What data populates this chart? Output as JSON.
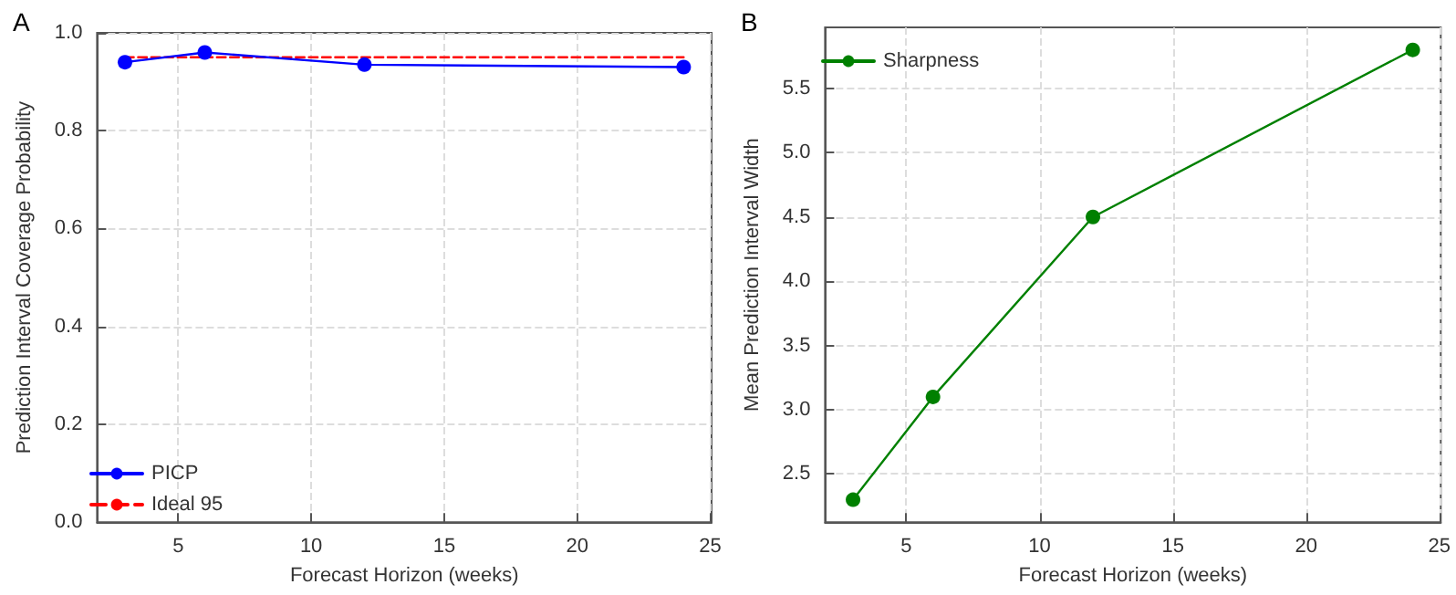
{
  "chart_data": [
    {
      "type": "line",
      "title": "A",
      "xlabel": "Forecast Horizon (weeks)",
      "ylabel": "Prediction Interval Coverage Probability",
      "x": [
        3,
        6,
        12,
        24
      ],
      "series": [
        {
          "name": "PICP",
          "color": "#0000ff",
          "values": [
            0.94,
            0.96,
            0.935,
            0.93
          ],
          "marker": "circle",
          "line_style": "solid"
        },
        {
          "name": "Ideal 95",
          "color": "#ff0000",
          "x": [
            3,
            24
          ],
          "values": [
            0.95,
            0.95
          ],
          "marker": "none",
          "line_style": "dashed"
        }
      ],
      "xlim": [
        1.95,
        25.05
      ],
      "xticks": [
        5,
        10,
        15,
        20,
        25
      ],
      "ylim": [
        0,
        1
      ],
      "yticks": [
        {
          "value": 0,
          "label": "0.0"
        },
        {
          "value": 0.2,
          "label": "0.2"
        },
        {
          "value": 0.4,
          "label": "0.4"
        },
        {
          "value": 0.6,
          "label": "0.6"
        },
        {
          "value": 0.8,
          "label": "0.8"
        },
        {
          "value": 1,
          "label": "1.0"
        }
      ],
      "grid": true,
      "legend": "bottom left"
    },
    {
      "type": "line",
      "title": "B",
      "xlabel": "Forecast Horizon (weeks)",
      "ylabel": "Mean Prediction Interval Width",
      "x": [
        3,
        6,
        12,
        24
      ],
      "series": [
        {
          "name": "Sharpness",
          "color": "#008000",
          "values": [
            2.3,
            3.1,
            4.5,
            5.8
          ],
          "marker": "circle",
          "line_style": "solid"
        }
      ],
      "xlim": [
        1.95,
        25.05
      ],
      "xticks": [
        5,
        10,
        15,
        20,
        25
      ],
      "ylim": [
        2.125,
        5.975
      ],
      "yticks": [
        {
          "value": 2.5,
          "label": "2.5"
        },
        {
          "value": 3,
          "label": "3.0"
        },
        {
          "value": 3.5,
          "label": "3.5"
        },
        {
          "value": 4,
          "label": "4.0"
        },
        {
          "value": 4.5,
          "label": "4.5"
        },
        {
          "value": 5,
          "label": "5.0"
        },
        {
          "value": 5.5,
          "label": "5.5"
        }
      ],
      "grid": true,
      "legend": "top left"
    }
  ]
}
